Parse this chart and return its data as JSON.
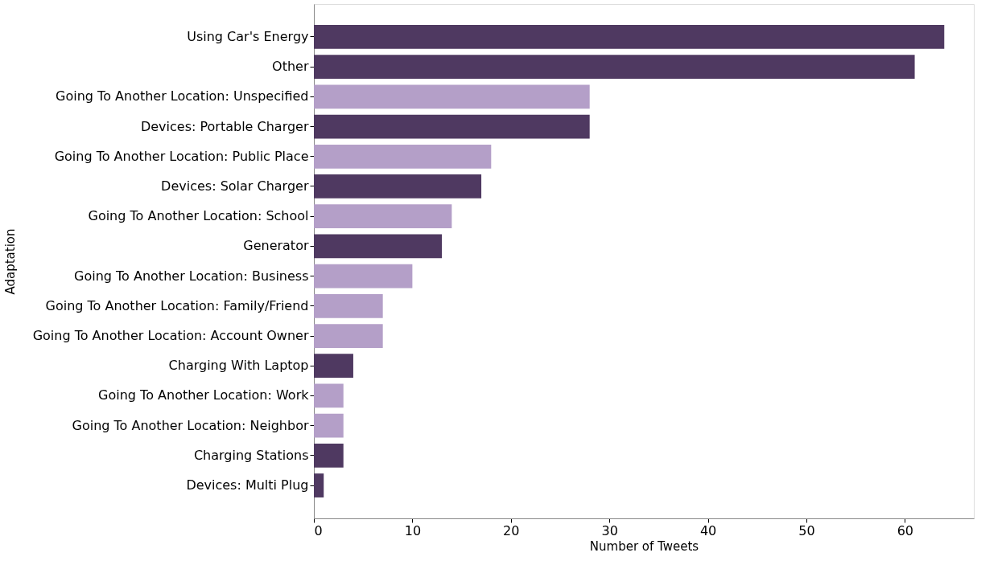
{
  "chart_data": {
    "type": "bar",
    "orientation": "horizontal",
    "xlabel": "Number of Tweets",
    "ylabel": "Adaptation",
    "categories": [
      "Using Car's Energy",
      "Other",
      "Going To Another Location: Unspecified",
      "Devices: Portable Charger",
      "Going To Another Location: Public Place",
      "Devices: Solar Charger",
      "Going To Another Location: School",
      "Generator",
      "Going To Another Location: Business",
      "Going To Another Location: Family/Friend",
      "Going To Another Location: Account Owner",
      "Charging With Laptop",
      "Going To Another Location: Work",
      "Going To Another Location: Neighbor",
      "Charging Stations",
      "Devices: Multi Plug"
    ],
    "values": [
      64,
      61,
      28,
      28,
      18,
      17,
      14,
      13,
      10,
      7,
      7,
      4,
      3,
      3,
      3,
      1
    ],
    "colors": [
      "#4f3961",
      "#4f3961",
      "#b49fc8",
      "#4f3961",
      "#b49fc8",
      "#4f3961",
      "#b49fc8",
      "#4f3961",
      "#b49fc8",
      "#b49fc8",
      "#b49fc8",
      "#4f3961",
      "#b49fc8",
      "#b49fc8",
      "#4f3961",
      "#4f3961"
    ],
    "xlim": [
      0,
      67
    ],
    "xticks": [
      0,
      10,
      20,
      30,
      40,
      50,
      60
    ],
    "grid": false,
    "legend": false
  }
}
